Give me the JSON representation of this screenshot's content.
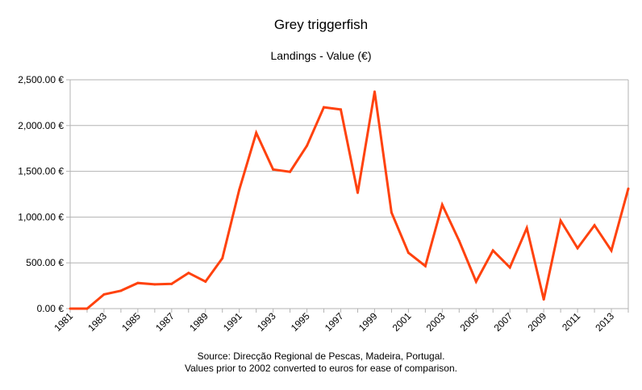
{
  "chart_data": {
    "type": "line",
    "title": "Grey triggerfish",
    "subtitle": "Landings - Value (€)",
    "xlabel": "",
    "ylabel": "",
    "x": [
      1981,
      1982,
      1983,
      1984,
      1985,
      1986,
      1987,
      1988,
      1989,
      1990,
      1991,
      1992,
      1993,
      1994,
      1995,
      1996,
      1997,
      1998,
      1999,
      2000,
      2001,
      2002,
      2003,
      2004,
      2005,
      2006,
      2007,
      2008,
      2009,
      2010,
      2011,
      2012,
      2013,
      2014
    ],
    "x_tick_labels": [
      "1981",
      "1983",
      "1985",
      "1987",
      "1989",
      "1991",
      "1993",
      "1995",
      "1997",
      "1999",
      "2001",
      "2003",
      "2005",
      "2007",
      "2009",
      "2011",
      "2013"
    ],
    "series": [
      {
        "values": [
          0,
          0,
          155,
          195,
          280,
          265,
          270,
          390,
          295,
          550,
          1300,
          1920,
          1520,
          1495,
          1780,
          2200,
          2175,
          1265,
          2370,
          1050,
          610,
          465,
          1135,
          740,
          295,
          635,
          450,
          880,
          100,
          960,
          660,
          910,
          635,
          1310
        ],
        "color": "#ff420e"
      }
    ],
    "ylim": [
      0,
      2500
    ],
    "y_ticks": [
      0,
      500,
      1000,
      1500,
      2000,
      2500
    ],
    "y_tick_labels": [
      "0.00 €",
      "500.00 €",
      "1,000.00 €",
      "1,500.00 €",
      "2,000.00 €",
      "2,500.00 €"
    ],
    "grid": "horizontal",
    "legend": "none"
  },
  "footer": {
    "source_line1": "Source: Direcção Regional de Pescas, Madeira, Portugal.",
    "source_line2": "Values prior to 2002 converted to euros for ease of comparison."
  }
}
